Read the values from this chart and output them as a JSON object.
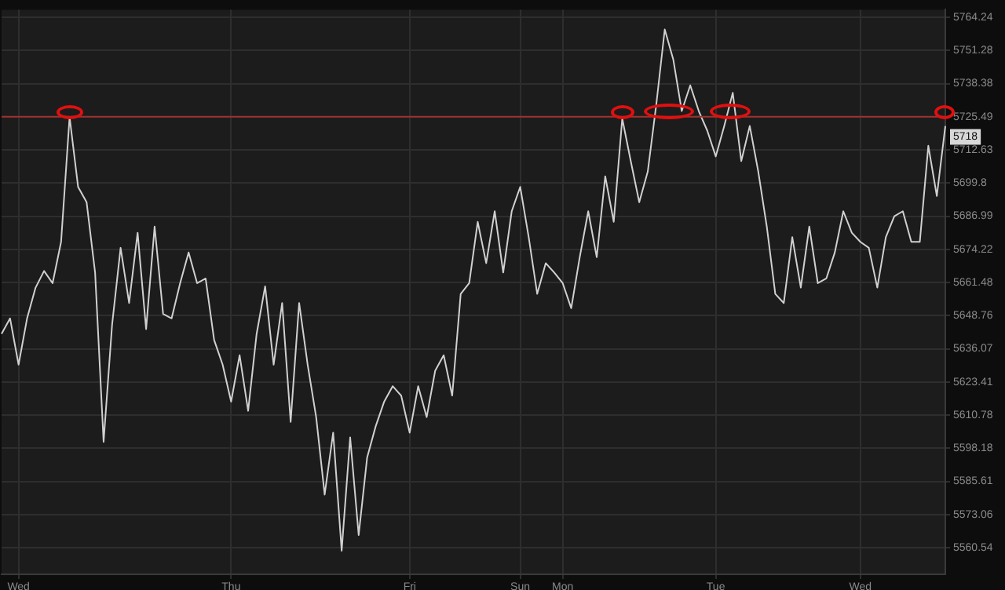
{
  "chart_data": {
    "type": "line",
    "log": true,
    "grid": true,
    "marker": "none",
    "line_style": "solid",
    "ylim": [
      5550.5,
      5767.2
    ],
    "categories": [
      null,
      null,
      "Wed",
      null,
      null,
      null,
      null,
      null,
      null,
      null,
      null,
      null,
      null,
      null,
      null,
      null,
      null,
      null,
      null,
      null,
      null,
      null,
      null,
      null,
      null,
      null,
      null,
      "Thu",
      null,
      null,
      null,
      null,
      null,
      null,
      null,
      null,
      null,
      null,
      null,
      null,
      null,
      null,
      null,
      null,
      null,
      null,
      null,
      null,
      "Fri",
      null,
      null,
      null,
      null,
      null,
      null,
      null,
      null,
      null,
      null,
      null,
      null,
      "Sun",
      null,
      null,
      null,
      null,
      "Mon",
      null,
      null,
      null,
      null,
      null,
      null,
      null,
      null,
      null,
      null,
      null,
      null,
      null,
      null,
      null,
      null,
      null,
      "Tue",
      null,
      null,
      null,
      null,
      null,
      null,
      null,
      null,
      null,
      null,
      null,
      null,
      null,
      null,
      null,
      null,
      "Wed",
      null,
      null,
      null,
      null,
      null,
      null,
      null,
      null,
      null,
      null
    ],
    "yticks": [
      5560.54,
      5573.06,
      5585.61,
      5598.18,
      5610.78,
      5623.41,
      5636.07,
      5648.76,
      5661.48,
      5674.22,
      5686.99,
      5699.8,
      5712.63,
      5725.49,
      5738.38,
      5751.28,
      5764.24
    ],
    "ref_lines": [
      {
        "axis": "y",
        "value": 5725.5,
        "color": "#a03030"
      }
    ],
    "annotations": [
      "5718"
    ],
    "series": [
      {
        "color": "#d0d0d0",
        "values": [
          5641.8,
          5647.7,
          5630.0,
          5647.7,
          5659.5,
          5665.9,
          5661.2,
          5677.1,
          5725.4,
          5698.3,
          5692.4,
          5665.3,
          5600.6,
          5645.3,
          5674.8,
          5653.6,
          5680.6,
          5643.6,
          5683.0,
          5649.4,
          5647.7,
          5661.2,
          5673.0,
          5661.2,
          5663.0,
          5639.4,
          5630.0,
          5615.9,
          5633.6,
          5612.4,
          5641.8,
          5660.0,
          5630.0,
          5653.6,
          5608.2,
          5653.6,
          5630.0,
          5610.0,
          5580.6,
          5604.1,
          5559.4,
          5602.3,
          5565.3,
          5594.7,
          5606.5,
          5615.9,
          5621.8,
          5618.2,
          5604.1,
          5621.8,
          5610.0,
          5627.7,
          5633.6,
          5618.2,
          5657.1,
          5661.2,
          5684.8,
          5668.9,
          5688.9,
          5665.3,
          5688.9,
          5698.3,
          5678.9,
          5657.1,
          5668.9,
          5665.3,
          5661.2,
          5651.6,
          5671.2,
          5688.9,
          5671.2,
          5702.4,
          5684.8,
          5724.8,
          5708.3,
          5692.4,
          5704.2,
          5730.1,
          5759.5,
          5747.8,
          5727.7,
          5737.7,
          5727.7,
          5720.1,
          5710.1,
          5721.9,
          5734.8,
          5708.3,
          5721.9,
          5704.2,
          5683.0,
          5657.1,
          5653.6,
          5678.9,
          5659.5,
          5683.0,
          5661.2,
          5663.0,
          5673.0,
          5688.9,
          5680.6,
          5677.1,
          5674.8,
          5659.5,
          5678.9,
          5686.99,
          5688.9,
          5677.1,
          5677.1,
          5714.2,
          5694.8,
          5721.9
        ]
      }
    ]
  }
}
